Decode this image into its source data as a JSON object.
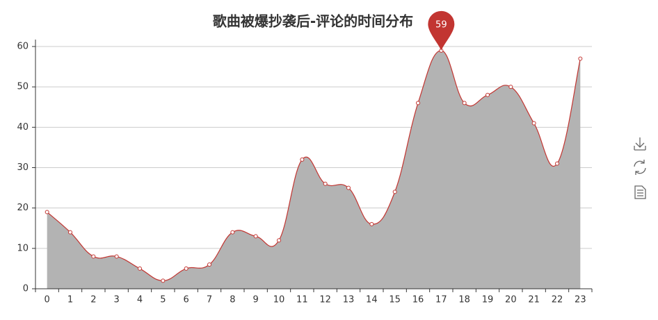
{
  "chart_data": {
    "type": "line",
    "title": "歌曲被爆抄袭后-评论的时间分布",
    "categories": [
      "0",
      "1",
      "2",
      "3",
      "4",
      "5",
      "6",
      "7",
      "8",
      "9",
      "10",
      "11",
      "12",
      "13",
      "14",
      "15",
      "16",
      "17",
      "18",
      "19",
      "20",
      "21",
      "22",
      "23"
    ],
    "values": [
      19,
      14,
      8,
      8,
      5,
      2,
      5,
      6,
      14,
      13,
      12,
      32,
      26,
      25,
      16,
      24,
      46,
      59,
      46,
      48,
      50,
      41,
      31,
      57
    ],
    "color": "#c23531",
    "area_color": "#b3b3b3",
    "ylim": [
      0,
      60
    ],
    "yticks": [
      0,
      10,
      20,
      30,
      40,
      50,
      60
    ],
    "grid": true,
    "max_marker_index": 17
  }
}
